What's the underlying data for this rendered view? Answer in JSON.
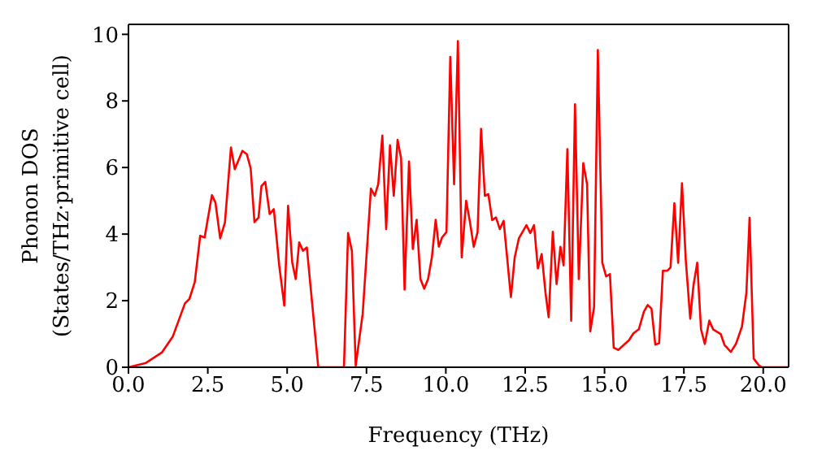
{
  "chart_data": {
    "type": "line",
    "xlabel": "Frequency (THz)",
    "ylabel": "Phonon DOS\n(States/THz·primitive cell)",
    "xlim": [
      0,
      20.8
    ],
    "xticks": [
      {
        "value": 0,
        "label": "0.0"
      },
      {
        "value": 2.5,
        "label": "2.5"
      },
      {
        "value": 5,
        "label": "5.0"
      },
      {
        "value": 7.5,
        "label": "7.5"
      },
      {
        "value": 10,
        "label": "10.0"
      },
      {
        "value": 12.5,
        "label": "12.5"
      },
      {
        "value": 15,
        "label": "15.0"
      },
      {
        "value": 17.5,
        "label": "17.5"
      },
      {
        "value": 20,
        "label": "20.0"
      }
    ],
    "ylim": [
      0,
      10.3
    ],
    "yticks": [
      0,
      2,
      4,
      6,
      8,
      10
    ],
    "marker": "none",
    "line_style": "solid",
    "x": [
      0,
      0.55,
      1.06,
      1.4,
      1.78,
      1.92,
      2.09,
      2.26,
      2.4,
      2.63,
      2.74,
      2.89,
      3.04,
      3.23,
      3.35,
      3.59,
      3.73,
      3.85,
      3.97,
      4.1,
      4.19,
      4.31,
      4.45,
      4.58,
      4.75,
      4.91,
      5.03,
      5.16,
      5.27,
      5.38,
      5.5,
      5.62,
      5.98,
      6.79,
      6.92,
      7.04,
      7.16,
      7.38,
      7.64,
      7.76,
      7.87,
      8.0,
      8.12,
      8.24,
      8.36,
      8.48,
      8.59,
      8.7,
      8.84,
      8.96,
      9.08,
      9.2,
      9.32,
      9.44,
      9.56,
      9.68,
      9.78,
      9.88,
      10.02,
      10.14,
      10.26,
      10.38,
      10.5,
      10.64,
      10.76,
      10.88,
      11.0,
      11.11,
      11.23,
      11.34,
      11.46,
      11.58,
      11.7,
      11.82,
      12.05,
      12.17,
      12.3,
      12.54,
      12.66,
      12.78,
      12.9,
      13.02,
      13.14,
      13.24,
      13.37,
      13.49,
      13.61,
      13.71,
      13.83,
      13.95,
      14.07,
      14.19,
      14.33,
      14.45,
      14.55,
      14.67,
      14.79,
      14.93,
      15.05,
      15.17,
      15.29,
      15.43,
      15.77,
      15.91,
      16.08,
      16.24,
      16.36,
      16.48,
      16.6,
      16.72,
      16.84,
      16.98,
      17.08,
      17.2,
      17.32,
      17.44,
      17.56,
      17.7,
      17.8,
      17.92,
      18.04,
      18.16,
      18.3,
      18.42,
      18.66,
      18.78,
      18.98,
      19.14,
      19.33,
      19.47,
      19.57,
      19.7,
      19.87,
      19.96,
      20.8
    ],
    "series": [
      {
        "color": "#ff0000",
        "values": [
          0,
          0.13,
          0.45,
          0.93,
          1.92,
          2.05,
          2.56,
          3.95,
          3.9,
          5.17,
          4.95,
          3.87,
          4.35,
          6.6,
          5.95,
          6.5,
          6.4,
          5.98,
          4.36,
          4.5,
          5.44,
          5.57,
          4.6,
          4.75,
          3.06,
          1.85,
          4.85,
          3.15,
          2.65,
          3.75,
          3.5,
          3.6,
          0,
          0,
          4.03,
          3.5,
          0.05,
          1.6,
          5.37,
          5.15,
          5.5,
          6.96,
          4.15,
          6.67,
          5.15,
          6.83,
          6.28,
          2.33,
          6.18,
          3.55,
          4.43,
          2.65,
          2.36,
          2.65,
          3.3,
          4.43,
          3.62,
          3.9,
          4.06,
          9.32,
          5.5,
          9.8,
          3.3,
          5.0,
          4.36,
          3.62,
          4.06,
          7.16,
          5.15,
          5.2,
          4.42,
          4.5,
          4.15,
          4.4,
          2.11,
          3.3,
          3.87,
          4.27,
          4.03,
          4.27,
          2.97,
          3.4,
          2.24,
          1.5,
          4.07,
          2.5,
          3.62,
          3.06,
          6.55,
          1.4,
          7.9,
          2.65,
          6.13,
          5.5,
          1.08,
          1.8,
          9.53,
          3.14,
          2.73,
          2.8,
          0.59,
          0.52,
          0.81,
          1.02,
          1.14,
          1.67,
          1.87,
          1.76,
          0.68,
          0.72,
          2.9,
          2.9,
          3.0,
          4.93,
          3.14,
          5.53,
          3.22,
          1.46,
          2.44,
          3.14,
          1.14,
          0.7,
          1.4,
          1.14,
          1.0,
          0.67,
          0.46,
          0.7,
          1.22,
          2.24,
          4.49,
          0.26,
          0.05,
          0,
          0
        ]
      }
    ]
  }
}
